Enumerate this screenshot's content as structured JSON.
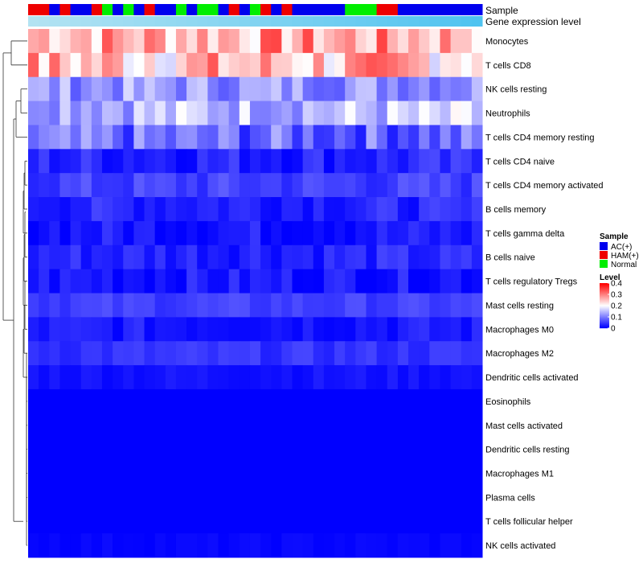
{
  "chart_data": {
    "type": "heatmap",
    "title": "",
    "annotation_tracks": [
      "Sample",
      "Gene expression level"
    ],
    "sample_groups": [
      "HAM",
      "HAM",
      "AC",
      "HAM",
      "AC",
      "AC",
      "HAM",
      "Normal",
      "AC",
      "Normal",
      "AC",
      "HAM",
      "AC",
      "AC",
      "Normal",
      "AC",
      "Normal",
      "Normal",
      "AC",
      "HAM",
      "AC",
      "Normal",
      "HAM",
      "AC",
      "HAM",
      "AC",
      "AC",
      "AC",
      "AC",
      "AC",
      "Normal",
      "Normal",
      "Normal",
      "HAM",
      "HAM",
      "AC",
      "AC",
      "AC",
      "AC",
      "AC",
      "AC",
      "AC",
      "AC"
    ],
    "sample_colors": {
      "AC": "#0000ee",
      "HAM": "#ee0000",
      "Normal": "#00ee00"
    },
    "expression_track_colors": [
      "#b3e3f2",
      "#4fc3f0"
    ],
    "rows": [
      "Monocytes",
      "T cells CD8",
      "NK cells resting",
      "Neutrophils",
      "T cells CD4 memory resting",
      "T cells CD4 naive",
      "T cells CD4 memory activated",
      "B cells memory",
      "T cells gamma delta",
      "B cells naive",
      "T cells regulatory  Tregs",
      "Mast cells resting",
      "Macrophages M0",
      "Macrophages M2",
      "Dendritic cells activated",
      "Eosinophils",
      "Mast cells activated",
      "Dendritic cells resting",
      "Macrophages M1",
      "Plasma cells",
      "T cells follicular helper",
      "NK cells activated"
    ],
    "row_means": [
      0.27,
      0.25,
      0.12,
      0.15,
      0.08,
      0.03,
      0.05,
      0.03,
      0.02,
      0.03,
      0.02,
      0.05,
      0.02,
      0.04,
      0.015,
      0.0,
      0.0,
      0.0,
      0.0,
      0.0,
      0.0,
      0.005
    ],
    "row_spread": [
      0.08,
      0.09,
      0.05,
      0.06,
      0.06,
      0.03,
      0.025,
      0.025,
      0.025,
      0.025,
      0.025,
      0.015,
      0.02,
      0.015,
      0.01,
      0.0,
      0.0,
      0.0,
      0.0,
      0.0,
      0.0,
      0.005
    ],
    "color_scale": {
      "min": 0,
      "max": 0.4,
      "stops": [
        {
          "value": 0.0,
          "color": "#0000ff"
        },
        {
          "value": 0.2,
          "color": "#ffffff"
        },
        {
          "value": 0.4,
          "color": "#ff0000"
        }
      ]
    },
    "legend": {
      "sample_title": "Sample",
      "sample_entries": [
        {
          "label": "AC(+)",
          "color": "#0000ee"
        },
        {
          "label": "HAM(+)",
          "color": "#ee0000"
        },
        {
          "label": "Normal",
          "color": "#00ee00"
        }
      ],
      "level_title": "Level",
      "level_ticks": [
        "0.4",
        "0.3",
        "0.2",
        "0.1",
        "0"
      ],
      "level_tick_values": [
        0.4,
        0.3,
        0.2,
        0.1,
        0
      ],
      "position": "right"
    }
  }
}
